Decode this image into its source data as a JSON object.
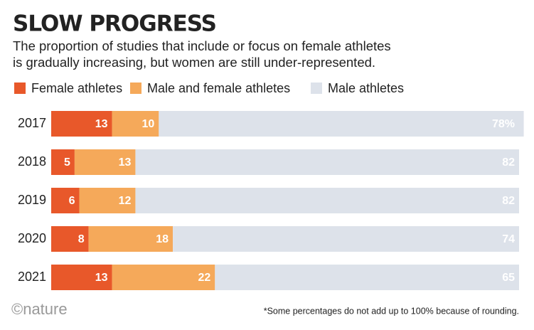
{
  "chart_data": {
    "type": "stacked-bar-horizontal",
    "title": "SLOW PROGRESS",
    "subtitle": [
      "The proportion of studies that include or focus on female athletes",
      "is gradually increasing, but women are still under-represented."
    ],
    "categories": [
      "2017",
      "2018",
      "2019",
      "2020",
      "2021"
    ],
    "series": [
      {
        "name": "Female athletes",
        "color": "#e8582a",
        "values": [
          13,
          5,
          6,
          8,
          13
        ]
      },
      {
        "name": "Male and female athletes",
        "color": "#f5a95a",
        "values": [
          10,
          13,
          12,
          18,
          22
        ]
      },
      {
        "name": "Male athletes",
        "color": "#dde2ea",
        "values": [
          78,
          82,
          82,
          74,
          65
        ],
        "value_labels": [
          "78%",
          "82",
          "82",
          "74",
          "65"
        ]
      }
    ],
    "xlim": [
      0,
      100
    ],
    "source": "©nature",
    "footnote": "*Some percentages do not add up to 100% because of rounding."
  }
}
